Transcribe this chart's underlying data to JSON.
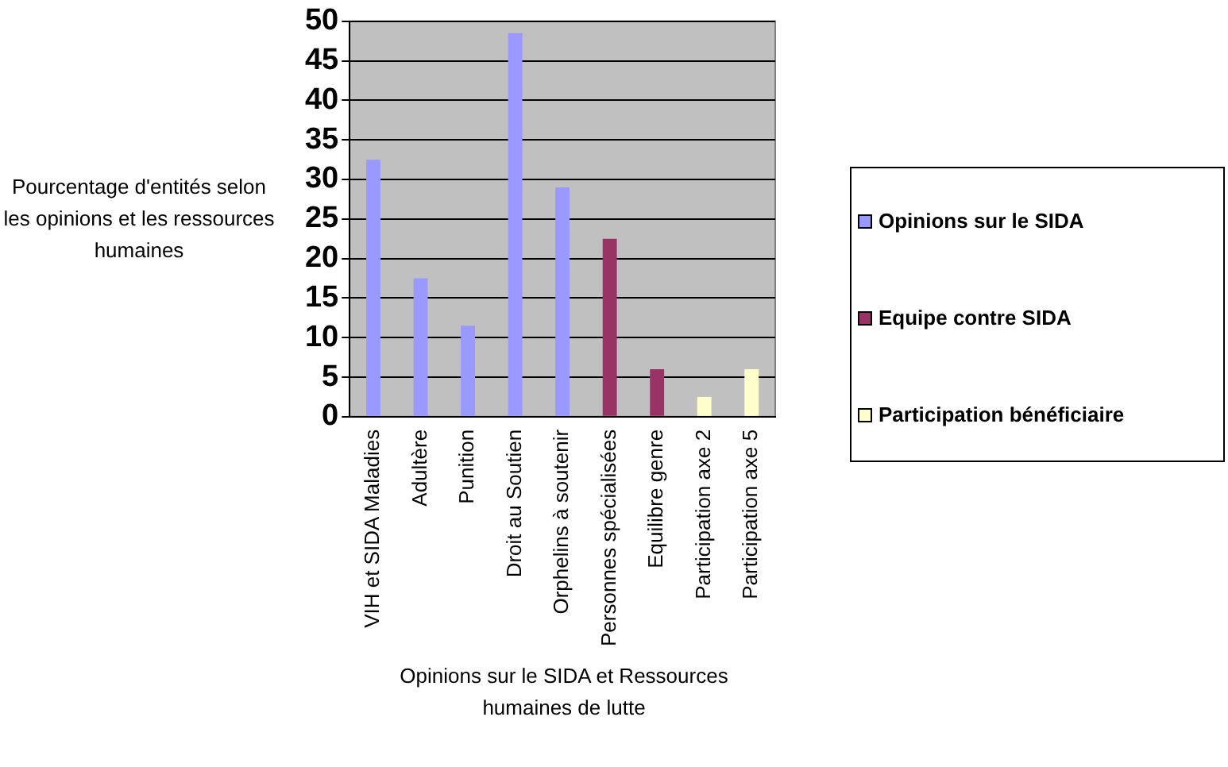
{
  "chart_data": {
    "type": "bar",
    "ylabel": "Pourcentage d'entités selon les opinions et les ressources humaines",
    "xlabel": "Opinions sur le SIDA et Ressources humaines de lutte",
    "categories": [
      "VIH et SIDA Maladies",
      "Adultère",
      "Punition",
      "Droit au Soutien",
      "Orphelins à soutenir",
      "Personnes spécialisées",
      "Equilibre genre",
      "Participation axe 2",
      "Participation axe 5"
    ],
    "series": [
      {
        "name": "Opinions sur le SIDA",
        "color": "#9999ff",
        "values": [
          32.5,
          17.5,
          11.5,
          48.5,
          29,
          null,
          null,
          null,
          null
        ]
      },
      {
        "name": "Equipe contre SIDA",
        "color": "#993366",
        "values": [
          null,
          null,
          null,
          null,
          null,
          22.5,
          6,
          null,
          null
        ]
      },
      {
        "name": "Participation bénéficiaire",
        "color": "#ffffcc",
        "values": [
          null,
          null,
          null,
          null,
          null,
          null,
          null,
          2.5,
          6
        ]
      }
    ],
    "ylim": [
      0,
      50
    ],
    "yticks": [
      0,
      5,
      10,
      15,
      20,
      25,
      30,
      35,
      40,
      45,
      50
    ],
    "grid": "y",
    "legend": "right"
  }
}
